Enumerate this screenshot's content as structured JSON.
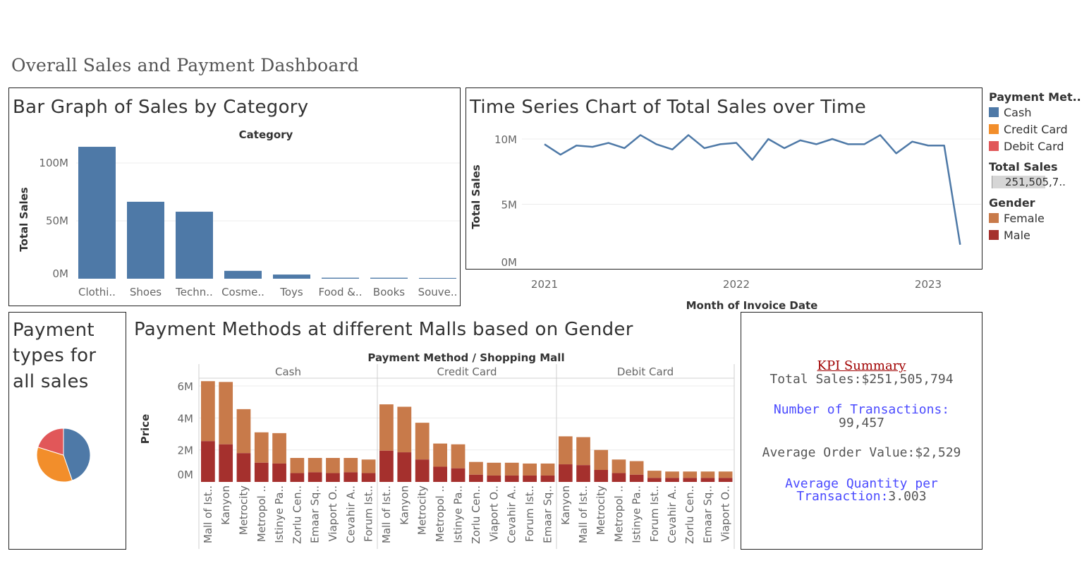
{
  "dashboard": {
    "title": "Overall Sales and Payment Dashboard"
  },
  "colors": {
    "cash": "#4e79a7",
    "credit": "#f28e2b",
    "debit": "#e15759",
    "female": "#c87a4a",
    "male": "#a5302d",
    "blue": "#4e79a7"
  },
  "legend": {
    "payment_title": "Payment Met..",
    "payment_items": [
      "Cash",
      "Credit Card",
      "Debit Card"
    ],
    "sales_title": "Total Sales",
    "sales_value": "251,505,7..",
    "gender_title": "Gender",
    "gender_items": [
      "Female",
      "Male"
    ]
  },
  "kpi": {
    "heading": "KPI Summary",
    "total_sales": "Total Sales:$251,505,794",
    "transactions_label": "Number of Transactions:",
    "transactions_value": "99,457",
    "aov": "Average Order Value:$2,529",
    "qty_label": "Average Quantity per",
    "qty_label2": "Transaction:",
    "qty_value": "3.003"
  },
  "chart_data": [
    {
      "id": "bar",
      "type": "bar",
      "title": "Bar Graph of Sales by Category",
      "header": "Category",
      "ylabel": "Total Sales",
      "ylim": [
        0,
        125
      ],
      "yticks": [
        {
          "v": 0,
          "label": "0M"
        },
        {
          "v": 50,
          "label": "50M"
        },
        {
          "v": 100,
          "label": "100M"
        }
      ],
      "categories": [
        "Clothi..",
        "Shoes",
        "Techn..",
        "Cosme..",
        "Toys",
        "Food &..",
        "Books",
        "Souve.."
      ],
      "values": [
        114,
        66.5,
        57.9,
        6.8,
        3.6,
        0.85,
        0.83,
        0.64
      ]
    },
    {
      "id": "line",
      "type": "line",
      "title": "Time Series Chart of Total Sales over Time",
      "xlabel": "Month of Invoice Date",
      "ylabel": "Total Sales",
      "ylim": [
        0,
        10.5
      ],
      "yticks": [
        {
          "v": 0,
          "label": "0M"
        },
        {
          "v": 5,
          "label": "5M"
        },
        {
          "v": 10,
          "label": "10M"
        }
      ],
      "xticks": [
        {
          "v": 0,
          "label": "2021"
        },
        {
          "v": 12,
          "label": "2022"
        },
        {
          "v": 24,
          "label": "2023"
        }
      ],
      "values": [
        9.6,
        8.8,
        9.5,
        9.4,
        9.7,
        9.3,
        10.3,
        9.6,
        9.2,
        10.3,
        9.3,
        9.6,
        9.7,
        8.4,
        10.0,
        9.3,
        9.9,
        9.6,
        10.0,
        9.6,
        9.6,
        10.3,
        8.9,
        9.8,
        9.5,
        9.5,
        1.9
      ]
    },
    {
      "id": "pie",
      "type": "pie",
      "title": "Payment types for all sales",
      "title_lines": [
        "Payment",
        "types for",
        "all sales"
      ],
      "slices": [
        {
          "name": "Cash",
          "value": 44.7
        },
        {
          "name": "Credit Card",
          "value": 35.1
        },
        {
          "name": "Debit Card",
          "value": 20.2
        }
      ]
    },
    {
      "id": "stacked",
      "type": "bar",
      "title": "Payment Methods at different Malls based on Gender",
      "header": "Payment Method / Shopping Mall",
      "ylabel": "Price",
      "ylim": [
        0,
        6.4
      ],
      "yticks": [
        {
          "v": 0,
          "label": "0M"
        },
        {
          "v": 2,
          "label": "2M"
        },
        {
          "v": 4,
          "label": "4M"
        },
        {
          "v": 6,
          "label": "6M"
        }
      ],
      "groups": [
        {
          "name": "Cash",
          "malls": [
            "Mall of Ist..",
            "Kanyon",
            "Metrocity",
            "Metropol ..",
            "Istinye Pa..",
            "Zorlu Cen..",
            "Emaar Sq..",
            "Viaport O..",
            "Cevahir A..",
            "Forum Ist.."
          ],
          "male": [
            2.55,
            2.35,
            1.8,
            1.2,
            1.15,
            0.55,
            0.6,
            0.55,
            0.6,
            0.55
          ],
          "total": [
            6.3,
            6.25,
            4.55,
            3.1,
            3.05,
            1.5,
            1.5,
            1.5,
            1.5,
            1.4
          ]
        },
        {
          "name": "Credit Card",
          "malls": [
            "Mall of Ist..",
            "Kanyon",
            "Metrocity",
            "Metropol ..",
            "Istinye Pa..",
            "Zorlu Cen..",
            "Viaport O..",
            "Cevahir A..",
            "Forum Ist..",
            "Emaar Sq.."
          ],
          "male": [
            1.95,
            1.85,
            1.4,
            0.95,
            0.85,
            0.45,
            0.4,
            0.4,
            0.4,
            0.4
          ],
          "total": [
            4.85,
            4.7,
            3.7,
            2.4,
            2.35,
            1.25,
            1.2,
            1.2,
            1.15,
            1.15
          ]
        },
        {
          "name": "Debit Card",
          "malls": [
            "Kanyon",
            "Mall of Ist..",
            "Metrocity",
            "Metropol ..",
            "Istinye Pa..",
            "Forum Ist..",
            "Cevahir A..",
            "Zorlu Cen..",
            "Emaar Sq..",
            "Viaport O.."
          ],
          "male": [
            1.1,
            1.05,
            0.75,
            0.55,
            0.45,
            0.25,
            0.25,
            0.25,
            0.25,
            0.25
          ],
          "total": [
            2.85,
            2.8,
            2.0,
            1.4,
            1.3,
            0.7,
            0.65,
            0.65,
            0.65,
            0.65
          ]
        }
      ]
    }
  ]
}
